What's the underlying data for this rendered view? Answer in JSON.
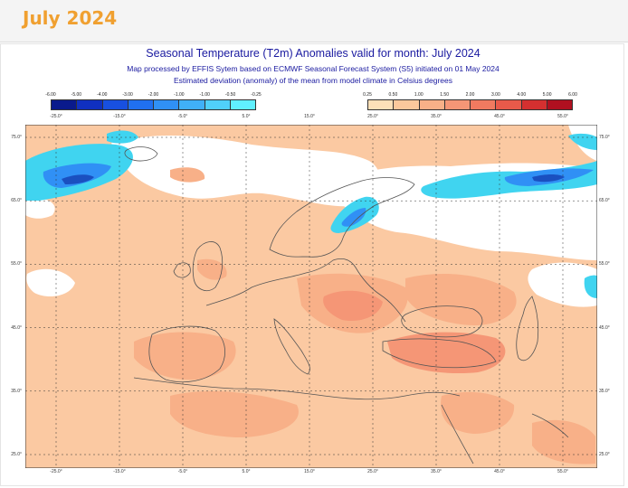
{
  "page": {
    "heading": "July 2024"
  },
  "figure": {
    "title": "Seasonal Temperature (T2m) Anomalies valid for month: July 2024",
    "subtitle1": "Map processed by EFFIS Sytem based on ECMWF Seasonal Forecast System (S5) initiated on 01 May 2024",
    "subtitle2": "Estimated deviation (anomaly) of the mean from model climate in Celsius degrees"
  },
  "legend_negative": {
    "ticks": [
      "-6.00",
      "-5.00",
      "-4.00",
      "-3.00",
      "-2.00",
      "-1.00",
      "-1.00",
      "-0.50",
      "-0.25"
    ],
    "colors": [
      "#0a1a8c",
      "#1030c0",
      "#1850e0",
      "#2070f0",
      "#3090f5",
      "#40b0f8",
      "#50d0fa",
      "#60f0ff"
    ]
  },
  "legend_positive": {
    "ticks": [
      "0.25",
      "0.50",
      "1.00",
      "1.50",
      "2.00",
      "3.00",
      "4.00",
      "5.00",
      "6.00"
    ],
    "colors": [
      "#fde0b8",
      "#fbc89c",
      "#f8b088",
      "#f59676",
      "#f07a60",
      "#e85a4a",
      "#d43030",
      "#b01020"
    ]
  },
  "lon_labels": [
    "-25.0°",
    "-15.0°",
    "-5.0°",
    "5.0°",
    "15.0°",
    "25.0°",
    "35.0°",
    "45.0°",
    "55.0°"
  ],
  "lat_labels": [
    "75.0°",
    "65.0°",
    "55.0°",
    "45.0°",
    "35.0°",
    "25.0°"
  ],
  "map_colors": {
    "sea_base": "#fbc9a2",
    "warm1": "#f8b088",
    "warm2": "#f59676",
    "warm3": "#f07a60",
    "cool_light": "#40d4f0",
    "cool_mid": "#3090f5",
    "cool_dark": "#1a50c0",
    "neutral": "#ffffff",
    "coast": "#555555",
    "grid": "#333333"
  }
}
